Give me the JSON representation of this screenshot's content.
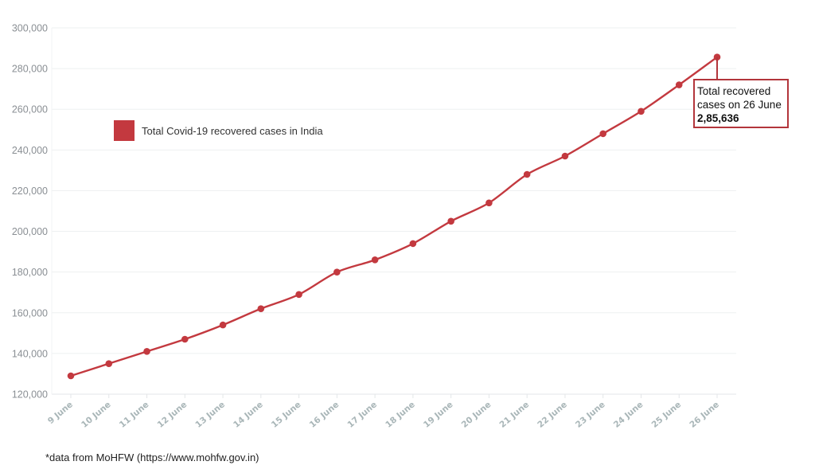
{
  "chart_data": {
    "type": "line",
    "title": "",
    "xlabel": "",
    "ylabel": "",
    "ylim": [
      120000,
      300000
    ],
    "yticks": [
      120000,
      140000,
      160000,
      180000,
      200000,
      220000,
      240000,
      260000,
      280000,
      300000
    ],
    "ytick_labels": [
      "120,000",
      "140,000",
      "160,000",
      "180,000",
      "200,000",
      "220,000",
      "240,000",
      "260,000",
      "280,000",
      "300,000"
    ],
    "grid": true,
    "legend_position": "upper-left",
    "categories": [
      "9 June",
      "10 June",
      "11 June",
      "12 June",
      "13 June",
      "14 June",
      "15 June",
      "16 June",
      "17 June",
      "18 June",
      "19 June",
      "20 June",
      "21 June",
      "22 June",
      "23 June",
      "24 June",
      "25 June",
      "26 June"
    ],
    "series": [
      {
        "name": "Total Covid-19 recovered cases in India",
        "color": "#c3393f",
        "values": [
          129000,
          135000,
          141000,
          147000,
          154000,
          162000,
          169000,
          180000,
          186000,
          194000,
          205000,
          214000,
          228000,
          237000,
          248000,
          259000,
          272000,
          285636
        ]
      }
    ],
    "annotations": [
      {
        "target": "26 June",
        "text": "Total recovered cases on 26 June",
        "value_text": "2,85,636"
      }
    ],
    "source_note": "*data from MoHFW (https://www.mohfw.gov.in)"
  },
  "legend": {
    "label": "Total Covid-19 recovered cases in India",
    "color": "#c3393f"
  },
  "callout": {
    "line1": "Total recovered",
    "line2": "cases on 26 June",
    "value": "2,85,636"
  },
  "footer": {
    "source": "*data from MoHFW (https://www.mohfw.gov.in)"
  }
}
